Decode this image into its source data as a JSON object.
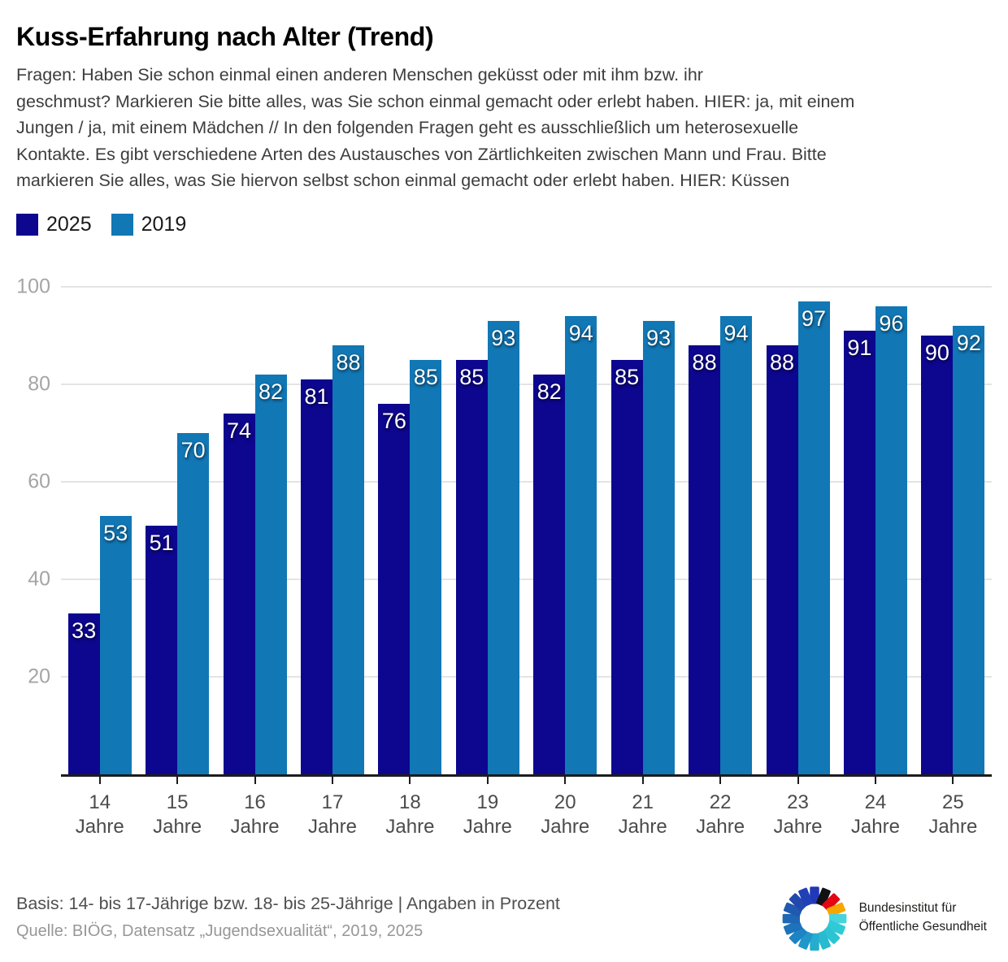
{
  "header": {
    "title": "Kuss-Erfahrung nach Alter (Trend)",
    "subtitle": "Fragen: Haben Sie schon einmal einen anderen Menschen geküsst oder mit ihm bzw. ihr\ngeschmust? Markieren Sie bitte alles, was Sie schon einmal gemacht oder erlebt haben. HIER: ja, mit einem\nJungen / ja, mit einem Mädchen // In den folgenden Fragen geht es ausschließlich um heterosexuelle\nKontakte. Es gibt verschiedene Arten des Austausches von Zärtlichkeiten zwischen Mann und Frau. Bitte\nmarkieren Sie alles, was Sie hiervon selbst schon einmal gemacht oder erlebt haben. HIER: Küssen"
  },
  "legend": [
    {
      "label": "2025",
      "color": "#0d068e"
    },
    {
      "label": "2019",
      "color": "#1177b5"
    }
  ],
  "chart_data": {
    "type": "bar",
    "title": "Kuss-Erfahrung nach Alter (Trend)",
    "categories": [
      "14",
      "15",
      "16",
      "17",
      "18",
      "19",
      "20",
      "21",
      "22",
      "23",
      "24",
      "25"
    ],
    "category_suffix": "Jahre",
    "series": [
      {
        "name": "2025",
        "color": "#0d068e",
        "values": [
          33,
          51,
          74,
          81,
          76,
          85,
          82,
          85,
          88,
          88,
          91,
          90
        ]
      },
      {
        "name": "2019",
        "color": "#1177b5",
        "values": [
          53,
          70,
          82,
          88,
          85,
          93,
          94,
          93,
          94,
          97,
          96,
          92
        ]
      }
    ],
    "ylabel": "",
    "xlabel": "",
    "ylim": [
      0,
      100
    ],
    "yticks": [
      20,
      40,
      60,
      80,
      100
    ],
    "grid": true,
    "legend_position": "top-left",
    "value_labels": true,
    "unit": "Prozent"
  },
  "footer": {
    "basis": "Basis: 14- bis 17-Jährige bzw. 18- bis 25-Jährige | Angaben in Prozent",
    "quelle": "Quelle: BIÖG, Datensatz „Jugendsexualität“, 2019, 2025",
    "logo": {
      "text": "Bundesinstitut für\nÖffentliche Gesundheit",
      "petal_colors": [
        "#2138b8",
        "#111114",
        "#e30613",
        "#f7a600",
        "#48d4dd",
        "#30cad6",
        "#2cc4d3",
        "#27bad0",
        "#25adcf",
        "#2097ca",
        "#1d83c2",
        "#1e72bb",
        "#1f66b5",
        "#2059b0",
        "#2149ac",
        "#2140b6"
      ]
    }
  },
  "style": {
    "gridline_color": "#e4e4e4",
    "axis_color": "#1c1c1c",
    "ytick_color": "#a5a5a5",
    "xtick_label_color": "#4b4b4b"
  }
}
